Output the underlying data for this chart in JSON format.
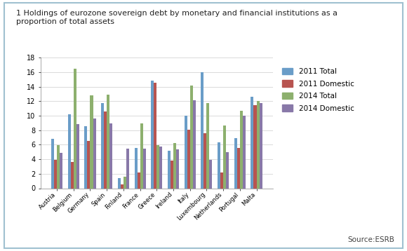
{
  "title": "1 Holdings of eurozone sovereign debt by monetary and financial institutions as a\nproportion of total assets",
  "categories": [
    "Austria",
    "Belgium",
    "Germany",
    "Spain",
    "Finland",
    "France",
    "Greece",
    "Ireland",
    "Italy",
    "Luxembourg",
    "Netherlands",
    "Portugal",
    "Malta"
  ],
  "series": {
    "2011 Total": [
      6.8,
      10.2,
      8.6,
      11.7,
      1.4,
      5.6,
      14.8,
      5.2,
      10.0,
      16.0,
      6.3,
      6.9,
      12.6
    ],
    "2011 Domestic": [
      3.9,
      3.6,
      6.5,
      10.6,
      0.5,
      2.2,
      14.6,
      3.8,
      8.1,
      7.6,
      2.2,
      5.6,
      11.5
    ],
    "2014 Total": [
      5.9,
      16.5,
      12.8,
      12.9,
      1.6,
      8.9,
      5.9,
      6.2,
      14.2,
      11.7,
      8.7,
      10.7,
      12.0
    ],
    "2014 Domestic": [
      4.9,
      8.8,
      9.6,
      8.9,
      5.5,
      5.5,
      5.8,
      5.4,
      12.1,
      3.9,
      5.0,
      10.0,
      11.7
    ]
  },
  "colors": {
    "2011 Total": "#6a9dc8",
    "2011 Domestic": "#b85450",
    "2014 Total": "#8db06e",
    "2014 Domestic": "#8878a8"
  },
  "ylim": [
    0,
    18
  ],
  "yticks": [
    0,
    2,
    4,
    6,
    8,
    10,
    12,
    14,
    16,
    18
  ],
  "source": "Source:ESRB",
  "background_color": "#ffffff",
  "border_color": "#a0c0d0"
}
